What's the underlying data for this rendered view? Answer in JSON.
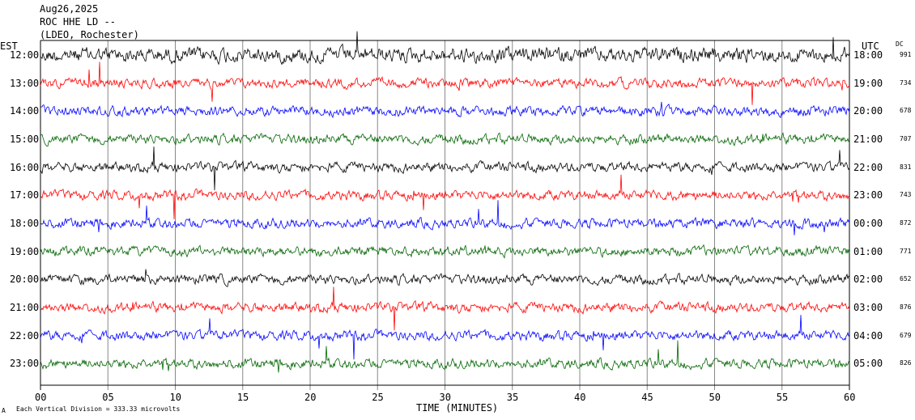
{
  "header": {
    "line1": "Aug26,2025",
    "line2": "ROC HHE LD --",
    "line3": "(LDEO, Rochester)"
  },
  "left_axis_title": "EST",
  "right_axis_title": "UTC",
  "dc_title": "DC",
  "footer": {
    "scale_note": "Each Vertical Division = 333.33 microvolts",
    "corner_glyph": "A"
  },
  "chart_data": {
    "type": "line",
    "xlabel": "TIME (MINUTES)",
    "xlim": [
      0,
      60
    ],
    "x_ticks": [
      "00",
      "05",
      "10",
      "15",
      "20",
      "25",
      "30",
      "35",
      "40",
      "45",
      "50",
      "55",
      "60"
    ],
    "traces": [
      {
        "est": "12:00",
        "utc": "18:00",
        "dc": "991",
        "color": "#000000"
      },
      {
        "est": "13:00",
        "utc": "19:00",
        "dc": "734",
        "color": "#ff0000"
      },
      {
        "est": "14:00",
        "utc": "20:00",
        "dc": "678",
        "color": "#0000ff"
      },
      {
        "est": "15:00",
        "utc": "21:00",
        "dc": "707",
        "color": "#006400"
      },
      {
        "est": "16:00",
        "utc": "22:00",
        "dc": "831",
        "color": "#000000"
      },
      {
        "est": "17:00",
        "utc": "23:00",
        "dc": "743",
        "color": "#ff0000"
      },
      {
        "est": "18:00",
        "utc": "00:00",
        "dc": "872",
        "color": "#0000ff"
      },
      {
        "est": "19:00",
        "utc": "01:00",
        "dc": "771",
        "color": "#006400"
      },
      {
        "est": "20:00",
        "utc": "02:00",
        "dc": "652",
        "color": "#000000"
      },
      {
        "est": "21:00",
        "utc": "03:00",
        "dc": "876",
        "color": "#ff0000"
      },
      {
        "est": "22:00",
        "utc": "04:00",
        "dc": "679",
        "color": "#0000ff"
      },
      {
        "est": "23:00",
        "utc": "05:00",
        "dc": "826",
        "color": "#006400"
      }
    ],
    "grid": "vertical lines every 5 minutes"
  }
}
